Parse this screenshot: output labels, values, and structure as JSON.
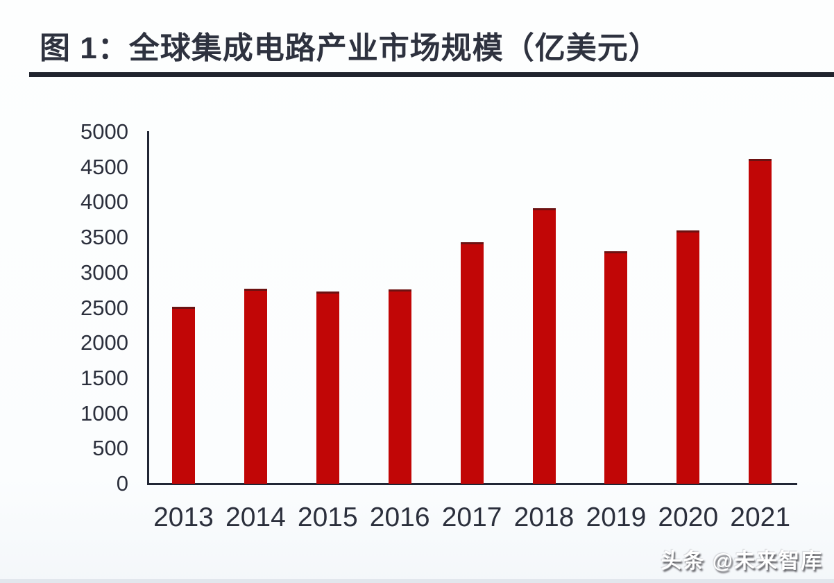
{
  "page": {
    "watermark": "头条 @未来智库"
  },
  "chart_data": {
    "type": "bar",
    "title": "图 1：全球集成电路产业市场规模（亿美元）",
    "categories": [
      "2013",
      "2014",
      "2015",
      "2016",
      "2017",
      "2018",
      "2019",
      "2020",
      "2021"
    ],
    "values": [
      2510,
      2770,
      2730,
      2760,
      3430,
      3920,
      3300,
      3600,
      4620
    ],
    "unit": "亿美元",
    "xlabel": "",
    "ylabel": "",
    "ylim": [
      0,
      5000
    ],
    "yticks": [
      0,
      500,
      1000,
      1500,
      2000,
      2500,
      3000,
      3500,
      4000,
      4500,
      5000
    ],
    "grid": false,
    "legend_position": "none",
    "bar_color": "#c10606",
    "bar_edge_color": "#6d1212",
    "axis_color": "#212635",
    "tick_label_color": "#2b2f3c",
    "title_color": "#2e323f",
    "title_rule_color": "#20242e",
    "watermark_color": "#ffffff"
  }
}
